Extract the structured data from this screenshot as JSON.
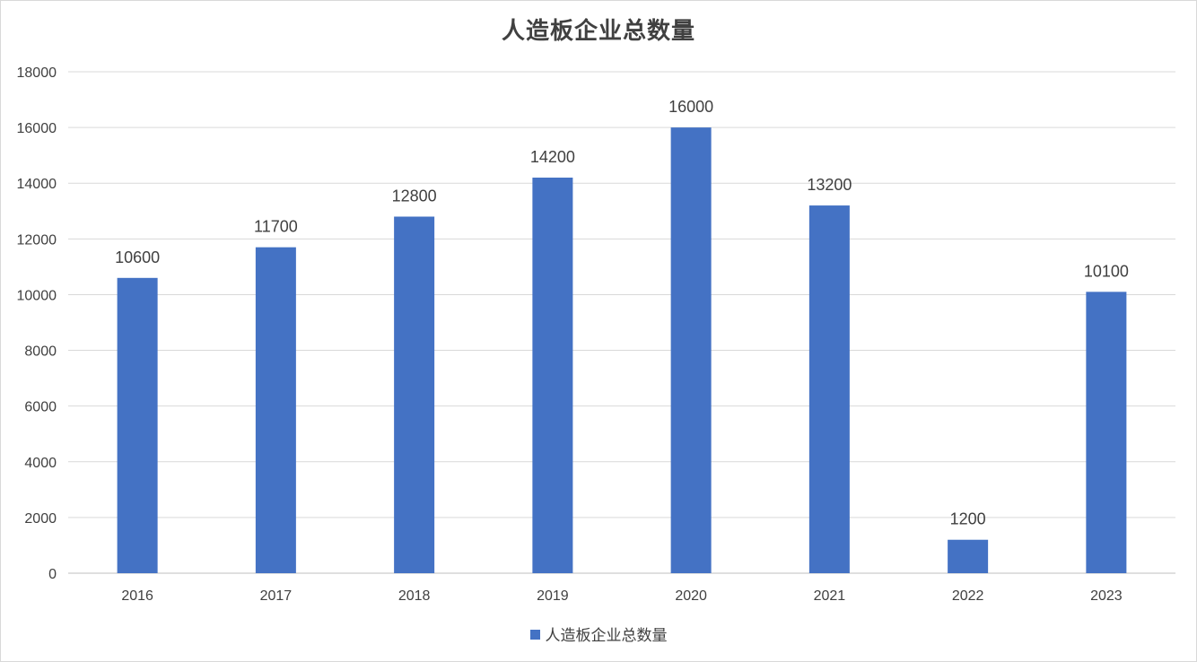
{
  "chart_data": {
    "type": "bar",
    "title": "人造板企业总数量",
    "categories": [
      "2016",
      "2017",
      "2018",
      "2019",
      "2020",
      "2021",
      "2022",
      "2023"
    ],
    "series": [
      {
        "name": "人造板企业总数量",
        "values": [
          10600,
          11700,
          12800,
          14200,
          16000,
          13200,
          1200,
          10100
        ],
        "color": "#4472c4"
      }
    ],
    "xlabel": "",
    "ylabel": "",
    "ylim": [
      0,
      18000
    ],
    "yticks": [
      0,
      2000,
      4000,
      6000,
      8000,
      10000,
      12000,
      14000,
      16000,
      18000
    ],
    "grid": true,
    "legend_position": "bottom",
    "data_labels": true
  }
}
